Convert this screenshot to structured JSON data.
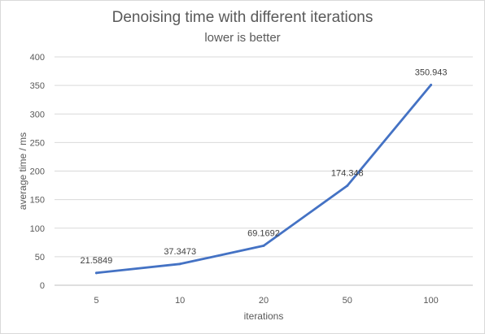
{
  "chart_data": {
    "type": "line",
    "title": "Denoising time with different iterations",
    "subtitle": "lower is better",
    "xlabel": "iterations",
    "ylabel": "average time / ms",
    "categories": [
      "5",
      "10",
      "20",
      "50",
      "100"
    ],
    "series": [
      {
        "values": [
          21.5849,
          37.3473,
          69.1692,
          174.348,
          350.943
        ],
        "data_labels": [
          "21.5849",
          "37.3473",
          "69.1692",
          "174.348",
          "350.943"
        ]
      }
    ],
    "ylim": [
      0,
      400
    ],
    "yticks": [
      0,
      50,
      100,
      150,
      200,
      250,
      300,
      350,
      400
    ],
    "grid": true,
    "legend": "none",
    "colors": {
      "line": "#4472c4",
      "grid": "#d9d9d9",
      "text": "#595959"
    }
  }
}
